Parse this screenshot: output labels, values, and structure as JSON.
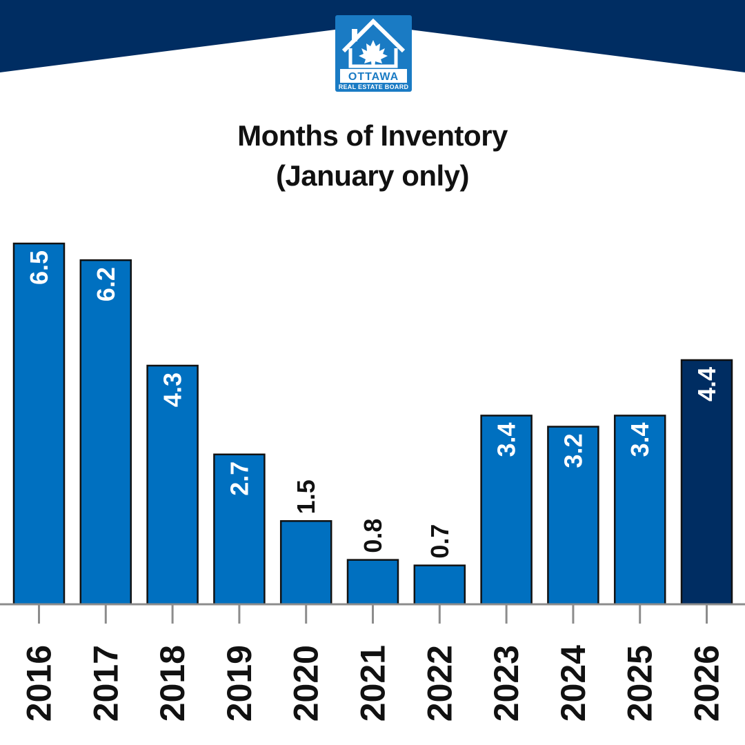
{
  "logo": {
    "name": "OTTAWA",
    "subtitle": "REAL ESTATE BOARD",
    "icon": "house-maple-leaf-icon"
  },
  "colors": {
    "banner": "#002d62",
    "bar": "#0070c0",
    "bar_highlight": "#002d62",
    "bar_outline": "#111111",
    "axis": "#8c8c8c",
    "label_inside": "#ffffff",
    "label_outside": "#111111"
  },
  "chart_data": {
    "type": "bar",
    "title": "Months of Inventory",
    "subtitle": "(January only)",
    "categories": [
      "2016",
      "2017",
      "2018",
      "2019",
      "2020",
      "2021",
      "2022",
      "2023",
      "2024",
      "2025",
      "2026"
    ],
    "values": [
      6.5,
      6.2,
      4.3,
      2.7,
      1.5,
      0.8,
      0.7,
      3.4,
      3.2,
      3.4,
      4.4
    ],
    "data_labels": [
      "6.5",
      "6.2",
      "4.3",
      "2.7",
      "1.5",
      "0.8",
      "0.7",
      "3.4",
      "3.2",
      "3.4",
      "4.4"
    ],
    "highlight_category": "2026",
    "xlabel": "",
    "ylabel": "",
    "ylim": [
      0,
      6.5
    ],
    "grid": false,
    "legend": "none"
  }
}
